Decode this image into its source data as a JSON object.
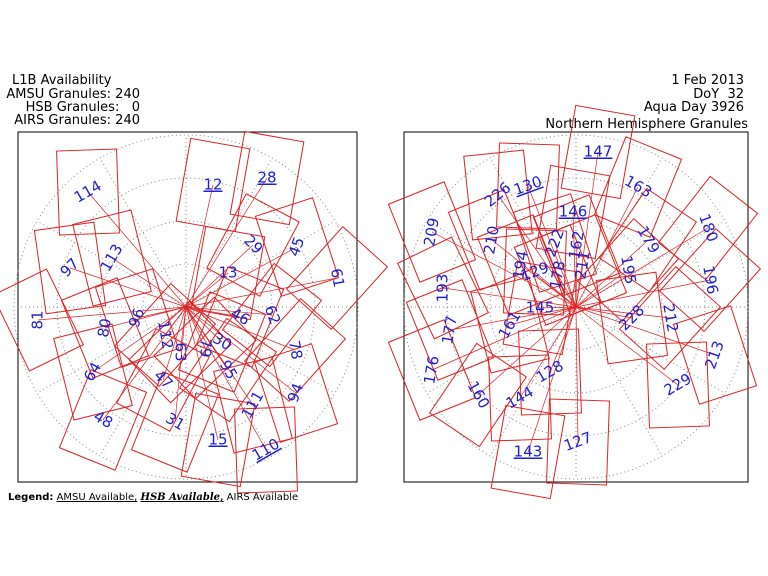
{
  "header": {
    "left": [
      "L1B Availability",
      "AMSU Granules: 240",
      "HSB Granules:   0",
      "AIRS Granules: 240"
    ],
    "right": [
      "1 Feb 2013",
      "DoY  32",
      "Aqua Day 3926",
      "Northern Hemisphere Granules"
    ]
  },
  "left_map": {
    "granules": [
      114,
      12,
      28,
      113,
      97,
      29,
      45,
      13,
      61,
      81,
      96,
      80,
      46,
      62,
      112,
      63,
      79,
      30,
      78,
      64,
      47,
      95,
      111,
      94,
      48,
      31,
      15,
      110
    ]
  },
  "right_map": {
    "granules": [
      147,
      226,
      130,
      163,
      209,
      146,
      179,
      180,
      210,
      222,
      162,
      194,
      129,
      178,
      211,
      195,
      196,
      193,
      145,
      177,
      161,
      228,
      212,
      176,
      128,
      213,
      160,
      144,
      229,
      143,
      127
    ]
  },
  "legend": {
    "title": "Legend:",
    "amsu": "AMSU Available,",
    "hsb": "HSB Available,",
    "airs": "AIRS Available"
  }
}
